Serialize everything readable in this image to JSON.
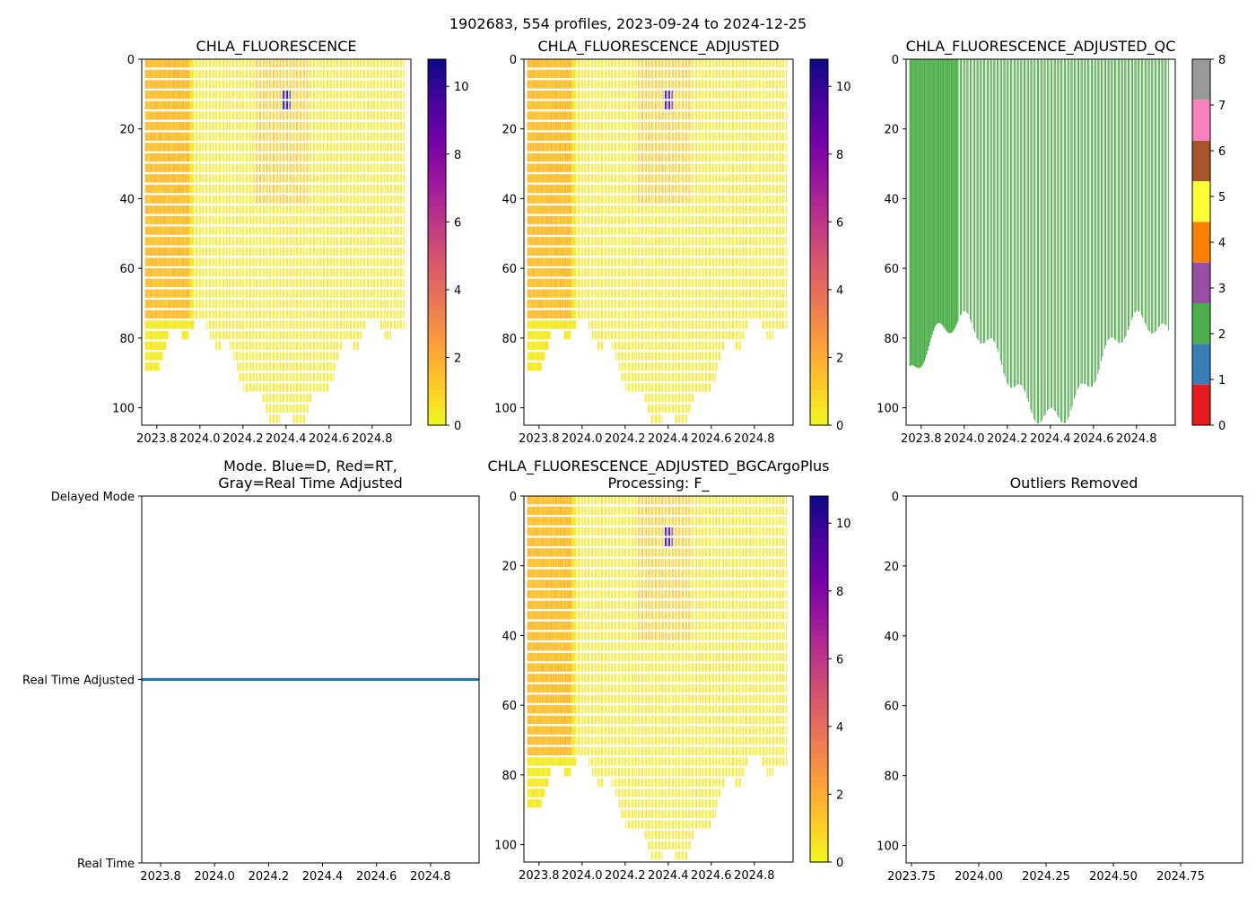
{
  "suptitle": "1902683, 554 profiles, 2023-09-24 to 2024-12-25",
  "colors": {
    "plasma": [
      "#0d0887",
      "#46039f",
      "#7201a8",
      "#9c179e",
      "#bd3786",
      "#d8576b",
      "#ed7953",
      "#fb9f3a",
      "#fdca26",
      "#f0f921"
    ],
    "qc": [
      "#e41a1c",
      "#377eb8",
      "#4daf4a",
      "#984ea3",
      "#ff7f00",
      "#ffff33",
      "#a65628",
      "#f781bf",
      "#999999"
    ],
    "mode_line": "#1f77b4",
    "axis": "#000000"
  },
  "chart_data": [
    {
      "id": "chla",
      "type": "heatmap",
      "title": "CHLA_FLUORESCENCE",
      "xlabel": "",
      "ylabel": "",
      "x_ticks": [
        "2023.8",
        "2024.0",
        "2024.2",
        "2024.4",
        "2024.6",
        "2024.8"
      ],
      "x_tick_values": [
        2023.8,
        2024.0,
        2024.2,
        2024.4,
        2024.6,
        2024.8
      ],
      "xlim": [
        2023.73,
        2024.98
      ],
      "y_ticks": [
        "0",
        "20",
        "40",
        "60",
        "80",
        "100"
      ],
      "y_tick_values": [
        0,
        20,
        40,
        60,
        80,
        100
      ],
      "ylim": [
        105,
        0
      ],
      "colorbar": {
        "cmap": "plasma_r",
        "range": [
          0,
          10.8
        ],
        "ticks": [
          "0",
          "2",
          "4",
          "6",
          "8",
          "10"
        ],
        "tick_values": [
          0,
          2,
          4,
          6,
          8,
          10
        ]
      },
      "bloom": {
        "time": 2024.4,
        "depth_range": [
          8,
          14
        ],
        "max_value": 10.8
      }
    },
    {
      "id": "chla_adj",
      "type": "heatmap",
      "title": "CHLA_FLUORESCENCE_ADJUSTED",
      "xlabel": "",
      "ylabel": "",
      "x_ticks": [
        "2023.8",
        "2024.0",
        "2024.2",
        "2024.4",
        "2024.6",
        "2024.8"
      ],
      "x_tick_values": [
        2023.8,
        2024.0,
        2024.2,
        2024.4,
        2024.6,
        2024.8
      ],
      "xlim": [
        2023.73,
        2024.98
      ],
      "y_ticks": [
        "0",
        "20",
        "40",
        "60",
        "80",
        "100"
      ],
      "y_tick_values": [
        0,
        20,
        40,
        60,
        80,
        100
      ],
      "ylim": [
        105,
        0
      ],
      "colorbar": {
        "cmap": "plasma_r",
        "range": [
          0,
          10.8
        ],
        "ticks": [
          "0",
          "2",
          "4",
          "6",
          "8",
          "10"
        ],
        "tick_values": [
          0,
          2,
          4,
          6,
          8,
          10
        ]
      },
      "bloom": {
        "time": 2024.4,
        "depth_range": [
          8,
          14
        ],
        "max_value": 10.8
      }
    },
    {
      "id": "chla_qc",
      "type": "heatmap",
      "title": "CHLA_FLUORESCENCE_ADJUSTED_QC",
      "xlabel": "",
      "ylabel": "",
      "x_ticks": [
        "2023.8",
        "2024.0",
        "2024.2",
        "2024.4",
        "2024.6",
        "2024.8"
      ],
      "x_tick_values": [
        2023.8,
        2024.0,
        2024.2,
        2024.4,
        2024.6,
        2024.8
      ],
      "xlim": [
        2023.73,
        2024.98
      ],
      "y_ticks": [
        "0",
        "20",
        "40",
        "60",
        "80",
        "100"
      ],
      "y_tick_values": [
        0,
        20,
        40,
        60,
        80,
        100
      ],
      "ylim": [
        105,
        0
      ],
      "qc_value": 2,
      "colorbar": {
        "cmap": "qc",
        "range": [
          0,
          8
        ],
        "ticks": [
          "0",
          "1",
          "2",
          "3",
          "4",
          "5",
          "6",
          "7",
          "8"
        ],
        "tick_values": [
          0,
          1,
          2,
          3,
          4,
          5,
          6,
          7,
          8
        ]
      }
    },
    {
      "id": "mode",
      "type": "line",
      "title": "Mode. Blue=D, Red=RT,",
      "title_line2": "Gray=Real Time Adjusted",
      "xlabel": "",
      "ylabel": "",
      "x_ticks": [
        "2023.8",
        "2024.0",
        "2024.2",
        "2024.4",
        "2024.6",
        "2024.8"
      ],
      "x_tick_values": [
        2023.8,
        2024.0,
        2024.2,
        2024.4,
        2024.6,
        2024.8
      ],
      "xlim": [
        2023.73,
        2024.98
      ],
      "y_ticks": [
        "Delayed Mode",
        "Real Time Adjusted",
        "Real Time"
      ],
      "y_tick_values": [
        0,
        1,
        2
      ],
      "ylim": [
        2,
        0
      ],
      "series": [
        {
          "name": "mode",
          "x": [
            2023.73,
            2024.98
          ],
          "values": [
            1,
            1
          ]
        }
      ]
    },
    {
      "id": "chla_bgc",
      "type": "heatmap",
      "title": "CHLA_FLUORESCENCE_ADJUSTED_BGCArgoPlus",
      "title_line2": "Processing: F_",
      "xlabel": "",
      "ylabel": "",
      "x_ticks": [
        "2023.8",
        "2024.0",
        "2024.2",
        "2024.4",
        "2024.6",
        "2024.8"
      ],
      "x_tick_values": [
        2023.8,
        2024.0,
        2024.2,
        2024.4,
        2024.6,
        2024.8
      ],
      "xlim": [
        2023.73,
        2024.98
      ],
      "y_ticks": [
        "0",
        "20",
        "40",
        "60",
        "80",
        "100"
      ],
      "y_tick_values": [
        0,
        20,
        40,
        60,
        80,
        100
      ],
      "ylim": [
        105,
        0
      ],
      "colorbar": {
        "cmap": "plasma_r",
        "range": [
          0,
          10.8
        ],
        "ticks": [
          "0",
          "2",
          "4",
          "6",
          "8",
          "10"
        ],
        "tick_values": [
          0,
          2,
          4,
          6,
          8,
          10
        ]
      },
      "bloom": {
        "time": 2024.4,
        "depth_range": [
          8,
          14
        ],
        "max_value": 10.8
      }
    },
    {
      "id": "outliers",
      "type": "scatter",
      "title": "Outliers Removed",
      "xlabel": "",
      "ylabel": "",
      "x_ticks": [
        "2023.75",
        "2024.00",
        "2024.25",
        "2024.50",
        "2024.75"
      ],
      "x_tick_values": [
        2023.75,
        2024.0,
        2024.25,
        2024.5,
        2024.75
      ],
      "xlim": [
        2023.73,
        2024.98
      ],
      "y_ticks": [
        "0",
        "20",
        "40",
        "60",
        "80",
        "100"
      ],
      "y_tick_values": [
        0,
        20,
        40,
        60,
        80,
        100
      ],
      "ylim": [
        105,
        0
      ],
      "series": []
    }
  ]
}
